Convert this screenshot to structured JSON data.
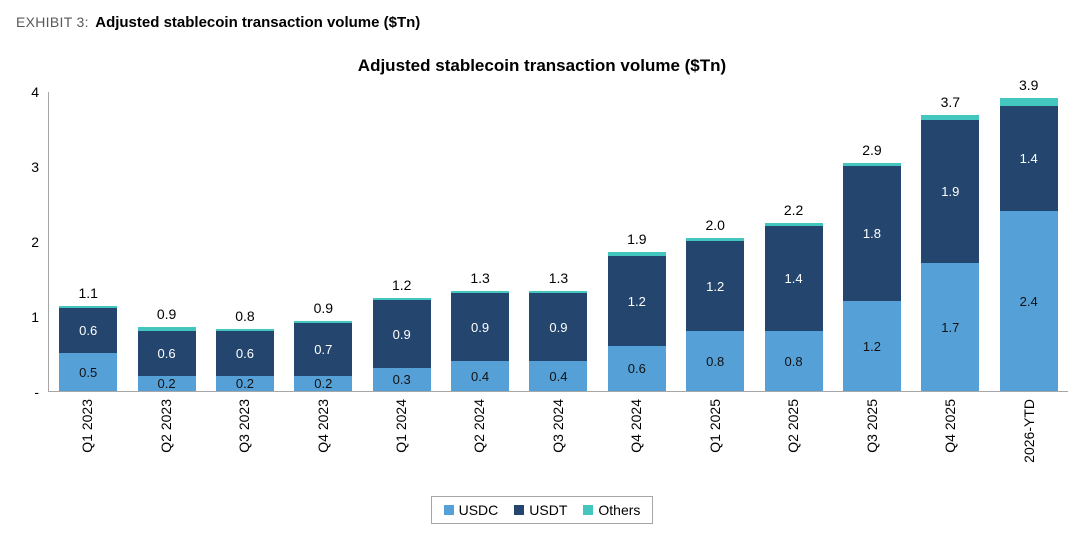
{
  "header": {
    "exhibit_label": "EXHIBIT 3:",
    "exhibit_title": "Adjusted stablecoin transaction volume ($Tn)"
  },
  "chart_data": {
    "type": "bar",
    "stacked": true,
    "title": "Adjusted stablecoin transaction volume ($Tn)",
    "categories": [
      "Q1 2023",
      "Q2 2023",
      "Q3 2023",
      "Q4 2023",
      "Q1 2024",
      "Q2 2024",
      "Q3 2024",
      "Q4 2024",
      "Q1 2025",
      "Q2 2025",
      "Q3 2025",
      "Q4 2025",
      "2026-YTD"
    ],
    "series": [
      {
        "name": "USDC",
        "color": "#56A0D8",
        "label_color": "#111111",
        "show_labels": true,
        "values": [
          0.5,
          0.2,
          0.2,
          0.2,
          0.3,
          0.4,
          0.4,
          0.6,
          0.8,
          0.8,
          1.2,
          1.7,
          2.4
        ]
      },
      {
        "name": "USDT",
        "color": "#24466E",
        "label_color": "#FFFFFF",
        "show_labels": true,
        "values": [
          0.6,
          0.6,
          0.6,
          0.7,
          0.9,
          0.9,
          0.9,
          1.2,
          1.2,
          1.4,
          1.8,
          1.9,
          1.4
        ]
      },
      {
        "name": "Others",
        "color": "#43C6BD",
        "label_color": "#111111",
        "show_labels": false,
        "values": [
          0.02,
          0.05,
          0.02,
          0.02,
          0.02,
          0.02,
          0.02,
          0.05,
          0.04,
          0.04,
          0.04,
          0.06,
          0.1
        ]
      }
    ],
    "totals": [
      "1.1",
      "0.9",
      "0.8",
      "0.9",
      "1.2",
      "1.3",
      "1.3",
      "1.9",
      "2.0",
      "2.2",
      "2.9",
      "3.7",
      "3.9"
    ],
    "ylim": [
      0,
      4
    ],
    "yticks": [
      {
        "label": "4",
        "value": 4
      },
      {
        "label": "3",
        "value": 3
      },
      {
        "label": "2",
        "value": 2
      },
      {
        "label": "1",
        "value": 1
      },
      {
        "label": "-",
        "value": 0
      }
    ],
    "legend": [
      "USDC",
      "USDT",
      "Others"
    ],
    "legend_position": "bottom",
    "grid": false
  }
}
